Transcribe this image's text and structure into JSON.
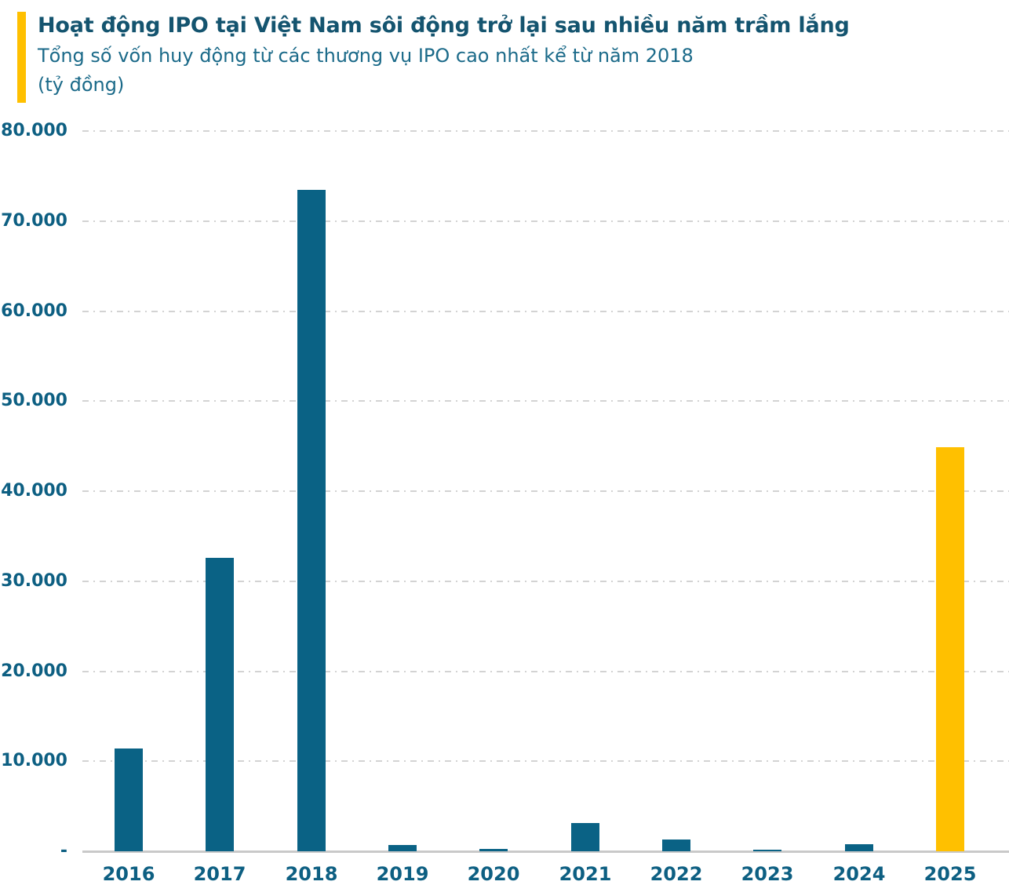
{
  "header": {
    "title": "Hoạt động IPO tại Việt Nam sôi động trở lại sau nhiều năm trầm lắng",
    "subtitle": "Tổng số vốn huy động từ các thương vụ IPO cao nhất kể từ năm 2018",
    "unit": "(tỷ đồng)",
    "accent_color": "#FFC000"
  },
  "chart_data": {
    "type": "bar",
    "title": "Hoạt động IPO tại Việt Nam sôi động trở lại sau nhiều năm trầm lắng",
    "subtitle": "Tổng số vốn huy động từ các thương vụ IPO cao nhất kể từ năm 2018",
    "ylabel": "(tỷ đồng)",
    "categories": [
      "2016",
      "2017",
      "2018",
      "2019",
      "2020",
      "2021",
      "2022",
      "2023",
      "2024",
      "2025"
    ],
    "values": [
      11400,
      32600,
      73500,
      700,
      250,
      3100,
      1300,
      200,
      800,
      44900
    ],
    "ylim": [
      0,
      80000
    ],
    "yticks": [
      {
        "label": "80.000",
        "value": 80000
      },
      {
        "label": "70.000",
        "value": 70000
      },
      {
        "label": "60.000",
        "value": 60000
      },
      {
        "label": "50.000",
        "value": 50000
      },
      {
        "label": "40.000",
        "value": 40000
      },
      {
        "label": "30.000",
        "value": 30000
      },
      {
        "label": "20.000",
        "value": 20000
      },
      {
        "label": "10.000",
        "value": 10000
      },
      {
        "label": "-",
        "value": 0
      }
    ],
    "grid": "horizontal dash-dot",
    "legend": "none",
    "bar_color": "#0A6285",
    "highlight_category": "2025",
    "highlight_color": "#FFC000",
    "gridline_color": "#d3d3d3",
    "axis_line_color": "#c9c9c9",
    "label_color": "#0D5F82"
  }
}
